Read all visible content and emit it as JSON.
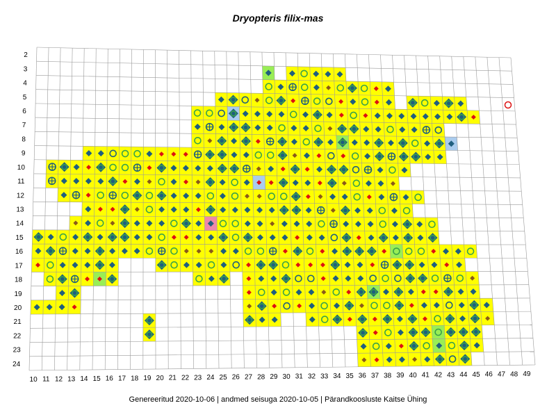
{
  "map": {
    "title": "Dryopteris filix-mas",
    "footer": "Genereeritud 2020-10-06  |  andmed seisuga 2020-10-05  |  Pärandkoosluste Kaitse Ühing",
    "columns": [
      "10",
      "11",
      "12",
      "13",
      "14",
      "15",
      "16",
      "17",
      "18",
      "19",
      "20",
      "21",
      "22",
      "23",
      "24",
      "25",
      "26",
      "27",
      "28",
      "29",
      "30",
      "31",
      "32",
      "33",
      "34",
      "35",
      "36",
      "37",
      "38",
      "39",
      "40",
      "41",
      "42",
      "43",
      "44",
      "45",
      "46",
      "47",
      "48",
      "49"
    ],
    "rows": [
      "2",
      "3",
      "4",
      "5",
      "6",
      "7",
      "8",
      "9",
      "10",
      "11",
      "12",
      "13",
      "14",
      "15",
      "16",
      "17",
      "18",
      "19",
      "20",
      "21",
      "22",
      "23",
      "24"
    ],
    "colors": {
      "occupied_cell": "#ffff00",
      "highlight_green": "#99ee55",
      "highlight_blue": "#aaccee",
      "highlight_pink": "#ee88aa",
      "grid_line": "#999999",
      "marker_teal": "#1f5f7f",
      "marker_green": "#3aa24a",
      "marker_red": "#dd1111",
      "marker_brown": "#8a5a1a"
    },
    "marker_legend_names": [
      "teal-diamond",
      "green-ring",
      "diamond-in-ring",
      "red-diamond",
      "brown-diamond",
      "crosshair-ring",
      "blue-ring",
      "red-ring"
    ]
  }
}
